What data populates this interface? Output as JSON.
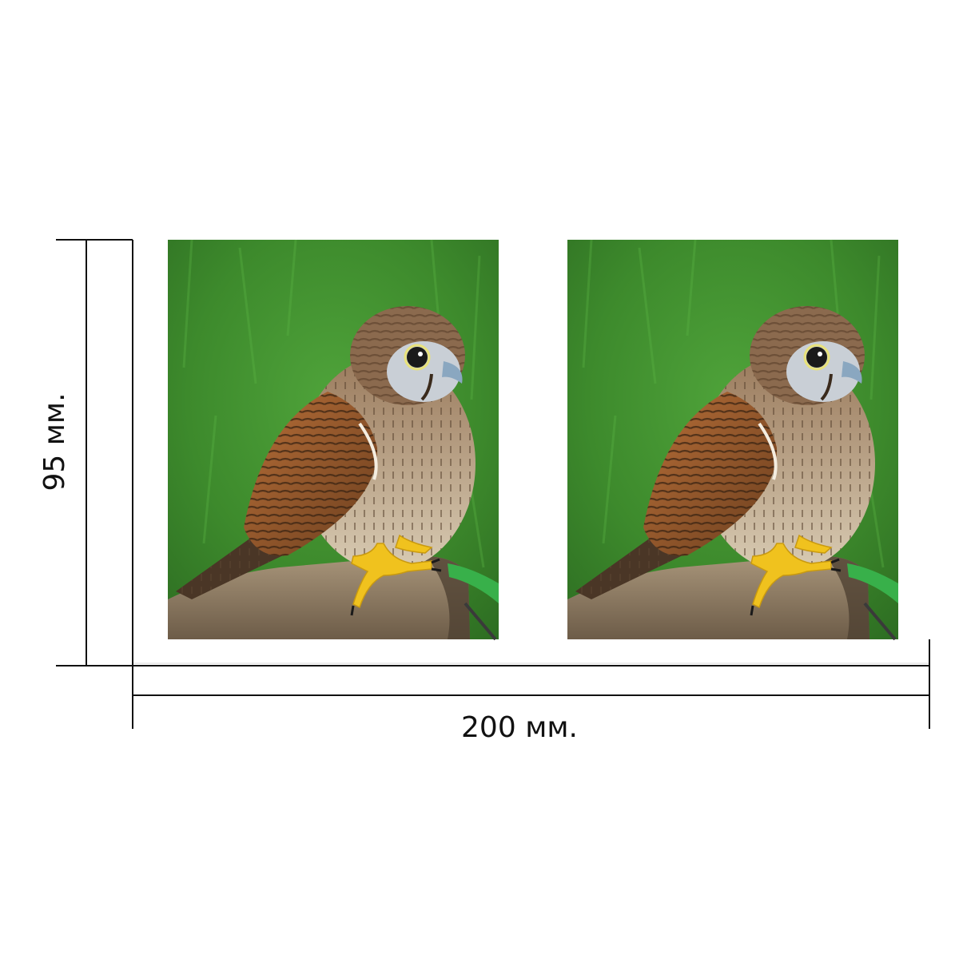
{
  "dimensions": {
    "height_label": "95 мм.",
    "width_label": "200 мм."
  },
  "photos": [
    {
      "name": "kestrel-photo-left",
      "subject": "kestrel-perched-on-stump"
    },
    {
      "name": "kestrel-photo-right",
      "subject": "kestrel-perched-on-stump"
    }
  ],
  "colors": {
    "line": "#111111",
    "grass": "#3f8f2e",
    "plumage": "#8a5a32",
    "wood": "#8d7a62",
    "talons": "#f2c020"
  }
}
